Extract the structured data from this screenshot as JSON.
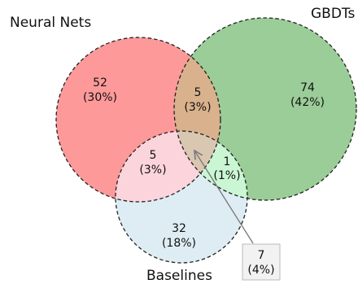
{
  "sets": [
    {
      "key": "neural_nets",
      "label": "Neural Nets",
      "color": "#ff0000"
    },
    {
      "key": "gbdts",
      "label": "GBDTs",
      "color": "#008000"
    },
    {
      "key": "baselines",
      "label": "Baselines",
      "color": "#87cefa"
    }
  ],
  "regions": {
    "neural_nets_only": {
      "count": "52",
      "pct": "(30%)"
    },
    "gbdts_only": {
      "count": "74",
      "pct": "(42%)"
    },
    "baselines_only": {
      "count": "32",
      "pct": "(18%)"
    },
    "neural_gbdt": {
      "count": "5",
      "pct": "(3%)"
    },
    "neural_baselines": {
      "count": "5",
      "pct": "(3%)"
    },
    "gbdt_baselines": {
      "count": "1",
      "pct": "(1%)"
    },
    "all_three": {
      "count": "7",
      "pct": "(4%)"
    }
  },
  "colors": {
    "neural_only": "#fe999a",
    "gbdts_only": "#9bcd98",
    "baselines_only": "#deedf4",
    "neural_gbdt": "#d9b18c",
    "neural_baselines": "#fcd4dc",
    "gbdt_baselines": "#caf6d3",
    "all_three": "#d9c7b2",
    "outline": "#222222",
    "callout_bg": "#f2f2f2",
    "callout_border": "#bbbbbb",
    "arrow": "#777777"
  }
}
